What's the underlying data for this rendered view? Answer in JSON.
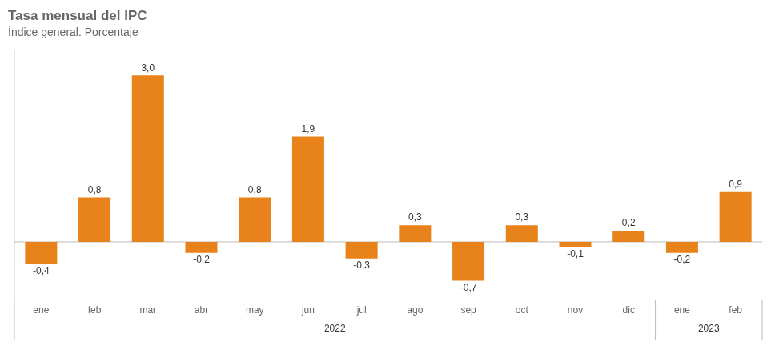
{
  "chart_data": {
    "type": "bar",
    "title": "Tasa mensual del IPC",
    "subtitle": "Índice general. Porcentaje",
    "categories": [
      "ene",
      "feb",
      "mar",
      "abr",
      "may",
      "jun",
      "jul",
      "ago",
      "sep",
      "oct",
      "nov",
      "dic",
      "ene",
      "feb"
    ],
    "values": [
      -0.4,
      0.8,
      3.0,
      -0.2,
      0.8,
      1.9,
      -0.3,
      0.3,
      -0.7,
      0.3,
      -0.1,
      0.2,
      -0.2,
      0.9
    ],
    "value_labels": [
      "-0,4",
      "0,8",
      "3,0",
      "-0,2",
      "0,8",
      "1,9",
      "-0,3",
      "0,3",
      "-0,7",
      "0,3",
      "-0,1",
      "0,2",
      "-0,2",
      "0,9"
    ],
    "color": "#E8821A",
    "ylim": [
      -1.05,
      3.45
    ],
    "grid": false,
    "data_labels": true,
    "tick_labels": "x",
    "annotations": [
      {
        "text": "2022",
        "span": 12
      },
      {
        "text": "2023",
        "span": 2
      }
    ]
  }
}
